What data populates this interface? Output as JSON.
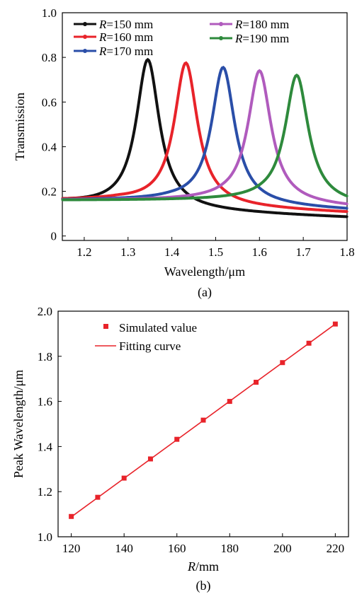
{
  "chart_data": [
    {
      "type": "line",
      "panel_label": "(a)",
      "xlabel": "Wavelength/μm",
      "ylabel": "Transmission",
      "xlim": [
        1.15,
        1.8
      ],
      "ylim": [
        -0.02,
        1.0
      ],
      "x_ticks": [
        "1.2",
        "1.3",
        "1.4",
        "1.5",
        "1.6",
        "1.7",
        "1.8"
      ],
      "x_tick_values": [
        1.2,
        1.3,
        1.4,
        1.5,
        1.6,
        1.7,
        1.8
      ],
      "y_ticks": [
        "0",
        "0.2",
        "0.4",
        "0.6",
        "0.8",
        "1.0"
      ],
      "y_tick_values": [
        0,
        0.2,
        0.4,
        0.6,
        0.8,
        1.0
      ],
      "grid": false,
      "legend_position": "top",
      "series": [
        {
          "name": "150 mm",
          "r_prefix": "R",
          "color": "#111111",
          "peak_x": 1.345,
          "peak_y": 0.79,
          "floor": 0.025,
          "x": [
            1.15,
            1.2,
            1.25,
            1.28,
            1.3,
            1.32,
            1.33,
            1.34,
            1.345,
            1.35,
            1.36,
            1.37,
            1.38,
            1.4,
            1.42,
            1.45,
            1.5,
            1.55,
            1.6,
            1.7,
            1.8
          ],
          "y": [
            0.145,
            0.2,
            0.31,
            0.44,
            0.58,
            0.72,
            0.77,
            0.79,
            0.79,
            0.77,
            0.69,
            0.59,
            0.49,
            0.34,
            0.25,
            0.18,
            0.12,
            0.09,
            0.075,
            0.055,
            0.045
          ]
        },
        {
          "name": "160 mm",
          "r_prefix": "R",
          "color": "#e8232a",
          "peak_x": 1.432,
          "peak_y": 0.775,
          "floor": 0.04,
          "x": [
            1.15,
            1.2,
            1.25,
            1.3,
            1.35,
            1.38,
            1.4,
            1.41,
            1.42,
            1.432,
            1.44,
            1.45,
            1.46,
            1.48,
            1.5,
            1.55,
            1.6,
            1.65,
            1.7,
            1.8
          ],
          "y": [
            0.105,
            0.12,
            0.15,
            0.2,
            0.31,
            0.44,
            0.58,
            0.68,
            0.75,
            0.775,
            0.74,
            0.64,
            0.53,
            0.37,
            0.28,
            0.17,
            0.12,
            0.1,
            0.085,
            0.065
          ]
        },
        {
          "name": "170 mm",
          "r_prefix": "R",
          "color": "#2a4ea8",
          "peak_x": 1.517,
          "peak_y": 0.755,
          "floor": 0.045,
          "x": [
            1.15,
            1.2,
            1.3,
            1.4,
            1.45,
            1.48,
            1.5,
            1.51,
            1.517,
            1.525,
            1.54,
            1.56,
            1.6,
            1.65,
            1.7,
            1.8
          ],
          "y": [
            0.09,
            0.1,
            0.13,
            0.24,
            0.4,
            0.58,
            0.71,
            0.75,
            0.755,
            0.73,
            0.58,
            0.41,
            0.24,
            0.15,
            0.11,
            0.075
          ]
        },
        {
          "name": "180 mm",
          "r_prefix": "R",
          "color": "#b05bbd",
          "peak_x": 1.6,
          "peak_y": 0.74,
          "floor": 0.05,
          "x": [
            1.15,
            1.2,
            1.3,
            1.4,
            1.5,
            1.55,
            1.58,
            1.6,
            1.61,
            1.63,
            1.65,
            1.7,
            1.75,
            1.8
          ],
          "y": [
            0.08,
            0.085,
            0.1,
            0.14,
            0.27,
            0.48,
            0.67,
            0.74,
            0.72,
            0.56,
            0.42,
            0.22,
            0.14,
            0.095
          ]
        },
        {
          "name": "190 mm",
          "r_prefix": "R",
          "color": "#2e8a3c",
          "peak_x": 1.685,
          "peak_y": 0.72,
          "floor": 0.05,
          "x": [
            1.15,
            1.2,
            1.3,
            1.4,
            1.5,
            1.6,
            1.64,
            1.67,
            1.685,
            1.7,
            1.72,
            1.75,
            1.8
          ],
          "y": [
            0.075,
            0.075,
            0.08,
            0.1,
            0.15,
            0.3,
            0.48,
            0.67,
            0.72,
            0.66,
            0.48,
            0.31,
            0.17
          ]
        }
      ]
    },
    {
      "type": "scatter",
      "panel_label": "(b)",
      "xlabel": "/mm",
      "xlabel_italic": "R",
      "ylabel": "Peak Wavelength/μm",
      "xlim": [
        115,
        225
      ],
      "ylim": [
        1.0,
        2.0
      ],
      "x_ticks": [
        "120",
        "140",
        "160",
        "180",
        "200",
        "220"
      ],
      "x_tick_values": [
        120,
        140,
        160,
        180,
        200,
        220
      ],
      "y_ticks": [
        "1.0",
        "1.2",
        "1.4",
        "1.6",
        "1.8",
        "2.0"
      ],
      "y_tick_values": [
        1.0,
        1.2,
        1.4,
        1.6,
        1.8,
        2.0
      ],
      "grid": false,
      "legend_position": "top-left",
      "color": "#e8232a",
      "series": [
        {
          "name": "Simulated value",
          "kind": "markers",
          "x": [
            120,
            130,
            140,
            150,
            160,
            170,
            180,
            190,
            200,
            210,
            220
          ],
          "y": [
            1.09,
            1.175,
            1.26,
            1.345,
            1.432,
            1.517,
            1.6,
            1.685,
            1.772,
            1.858,
            1.943
          ]
        },
        {
          "name": "Fitting curve",
          "kind": "line",
          "x": [
            120,
            220
          ],
          "y": [
            1.088,
            1.943
          ]
        }
      ]
    }
  ]
}
